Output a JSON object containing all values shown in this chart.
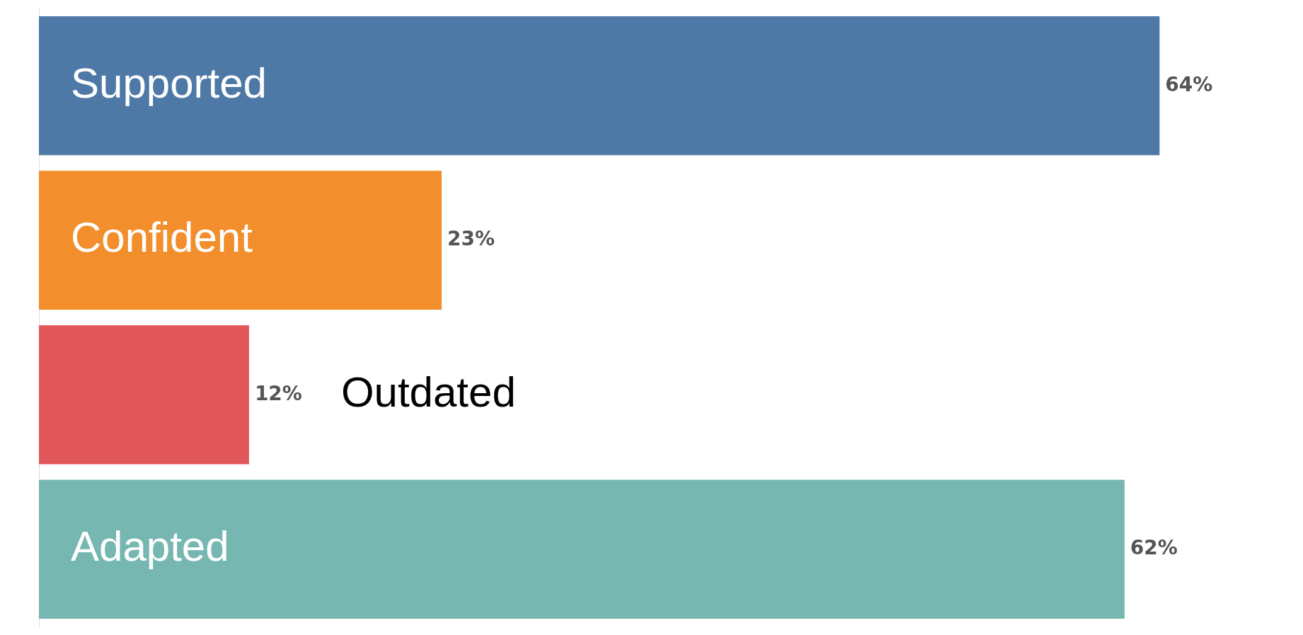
{
  "chart_data": {
    "type": "bar",
    "orientation": "horizontal",
    "categories": [
      "Supported",
      "Confident",
      "Outdated",
      "Adapted"
    ],
    "values": [
      64,
      23,
      12,
      62
    ],
    "colors": [
      "#4e79a7",
      "#f28e2b",
      "#e15759",
      "#76b7b2"
    ],
    "value_labels": [
      "64%",
      "23%",
      "12%",
      "62%"
    ]
  }
}
